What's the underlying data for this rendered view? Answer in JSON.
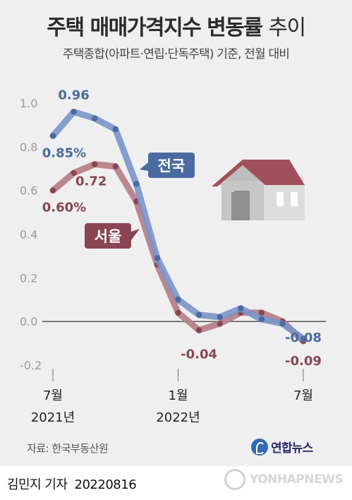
{
  "title": {
    "bold": "주택 매매가격지수 변동률",
    "thin": "추이"
  },
  "subtitle": "주택종합(아파트·연립·단독주택) 기준, 전월 대비",
  "source": "자료: 한국부동산원",
  "byline": {
    "author": "김민지 기자",
    "date": "20220816"
  },
  "logo": {
    "text": "연합뉴스"
  },
  "watermark": {
    "text": "YONHAPNEWS"
  },
  "colors": {
    "national": "#4a6aa0",
    "national_line": "#7b93c9",
    "seoul": "#8a4553",
    "seoul_line": "#b57c86",
    "background": "#efefef"
  },
  "chart_data": {
    "type": "line",
    "x": [
      "2021-07",
      "2021-08",
      "2021-09",
      "2021-10",
      "2021-11",
      "2021-12",
      "2022-01",
      "2022-02",
      "2022-03",
      "2022-04",
      "2022-05",
      "2022-06",
      "2022-07"
    ],
    "x_tick_labels": [
      {
        "index": 0,
        "month": "7월",
        "year": "2021년"
      },
      {
        "index": 6,
        "month": "1월",
        "year": "2022년"
      },
      {
        "index": 12,
        "month": "7월",
        "year": ""
      }
    ],
    "ylim": [
      -0.2,
      1.0
    ],
    "y_ticks": [
      "1.0",
      "0.8",
      "0.6",
      "0.4",
      "0.2",
      "0.0",
      "-0.2"
    ],
    "series": [
      {
        "name": "전국",
        "values": [
          0.85,
          0.96,
          0.93,
          0.88,
          0.63,
          0.29,
          0.1,
          0.03,
          0.02,
          0.06,
          0.01,
          -0.01,
          -0.08
        ]
      },
      {
        "name": "서울",
        "values": [
          0.6,
          0.68,
          0.72,
          0.71,
          0.55,
          0.26,
          0.04,
          -0.04,
          -0.01,
          0.04,
          0.04,
          0.0,
          -0.09
        ]
      }
    ],
    "annotations": {
      "national": [
        "0.96",
        "0.85%",
        "-0.08"
      ],
      "seoul": [
        "0.72",
        "0.60%",
        "-0.04",
        "-0.09"
      ]
    }
  }
}
